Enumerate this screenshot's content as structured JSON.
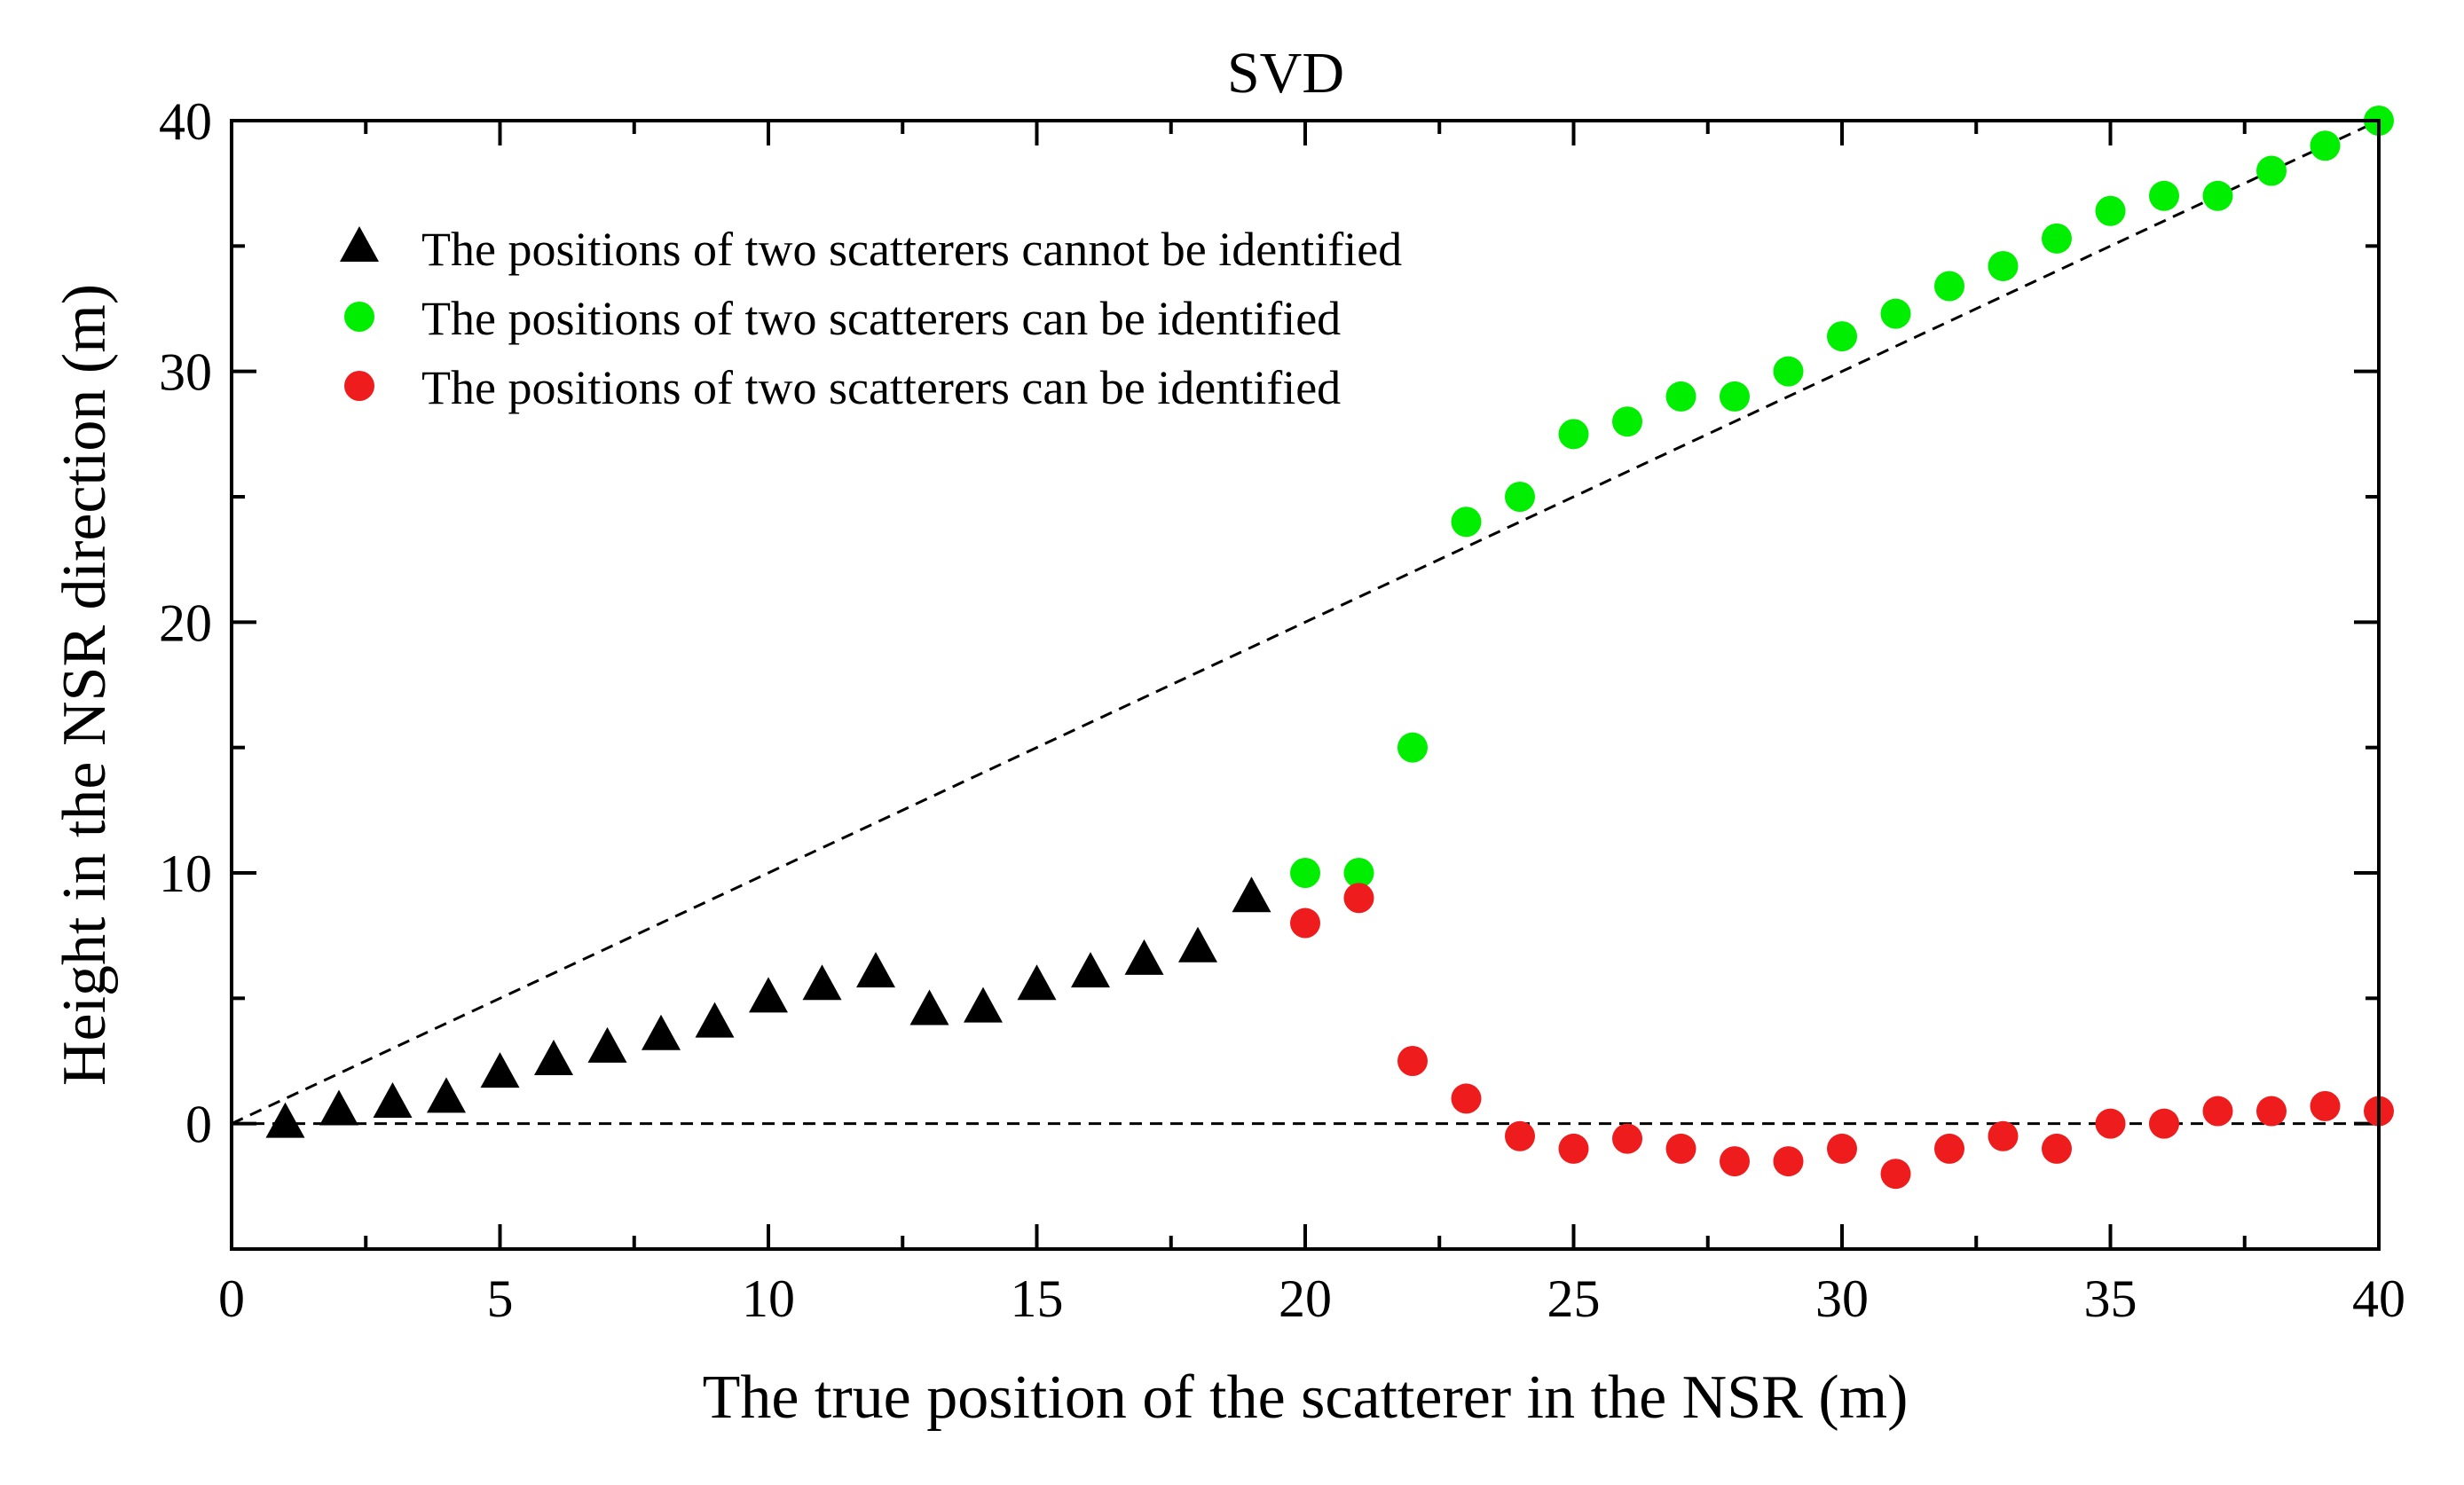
{
  "chart_data": {
    "type": "scatter",
    "title": "SVD",
    "xlabel": "The true position of the scatterer in the NSR (m)",
    "ylabel": "Height in the NSR direction (m)",
    "xlim": [
      0,
      40
    ],
    "ylim": [
      -5,
      40
    ],
    "x_ticks": [
      0,
      5,
      10,
      15,
      20,
      25,
      30,
      35,
      40
    ],
    "y_ticks": [
      0,
      10,
      20,
      30,
      40
    ],
    "x_minor_step": 2.5,
    "y_minor_step": 5,
    "grid": false,
    "legend_position": "top-left",
    "reference_lines": [
      {
        "name": "true-position-line",
        "style": "dashed",
        "color": "#000000",
        "points": [
          [
            0,
            0
          ],
          [
            40,
            40
          ]
        ]
      },
      {
        "name": "zero-height-line",
        "style": "dashed",
        "color": "#000000",
        "points": [
          [
            0,
            0
          ],
          [
            40,
            0
          ]
        ]
      }
    ],
    "series": [
      {
        "name": "The positions of two scatterers cannot be identified",
        "marker": "triangle",
        "color": "#000000",
        "points": [
          [
            1,
            0
          ],
          [
            2,
            0.5
          ],
          [
            3,
            0.8
          ],
          [
            4,
            1
          ],
          [
            5,
            2
          ],
          [
            6,
            2.5
          ],
          [
            7,
            3
          ],
          [
            8,
            3.5
          ],
          [
            9,
            4
          ],
          [
            10,
            5
          ],
          [
            11,
            5.5
          ],
          [
            12,
            6
          ],
          [
            13,
            4.5
          ],
          [
            14,
            4.6
          ],
          [
            15,
            5.5
          ],
          [
            16,
            6
          ],
          [
            17,
            6.5
          ],
          [
            18,
            7
          ],
          [
            19,
            9
          ]
        ]
      },
      {
        "name": "The positions of two scatterers can be identified",
        "marker": "circle",
        "color": "#00ee00",
        "points": [
          [
            20,
            10
          ],
          [
            21,
            10
          ],
          [
            22,
            15
          ],
          [
            23,
            24
          ],
          [
            24,
            25
          ],
          [
            25,
            27.5
          ],
          [
            26,
            28
          ],
          [
            27,
            29
          ],
          [
            28,
            29
          ],
          [
            29,
            30
          ],
          [
            30,
            31.4
          ],
          [
            31,
            32.3
          ],
          [
            32,
            33.4
          ],
          [
            33,
            34.2
          ],
          [
            34,
            35.3
          ],
          [
            35,
            36.4
          ],
          [
            36,
            37
          ],
          [
            37,
            37
          ],
          [
            38,
            38
          ],
          [
            39,
            39
          ],
          [
            40,
            40
          ]
        ]
      },
      {
        "name": "The positions of two scatterers can be identified",
        "marker": "circle",
        "color": "#ee1c1c",
        "points": [
          [
            20,
            8
          ],
          [
            21,
            9
          ],
          [
            22,
            2.5
          ],
          [
            23,
            1
          ],
          [
            24,
            -0.5
          ],
          [
            25,
            -1
          ],
          [
            26,
            -0.6
          ],
          [
            27,
            -1
          ],
          [
            28,
            -1.5
          ],
          [
            29,
            -1.5
          ],
          [
            30,
            -1
          ],
          [
            31,
            -2
          ],
          [
            32,
            -1
          ],
          [
            33,
            -0.5
          ],
          [
            34,
            -1
          ],
          [
            35,
            0
          ],
          [
            36,
            0
          ],
          [
            37,
            0.5
          ],
          [
            38,
            0.5
          ],
          [
            39,
            0.7
          ],
          [
            40,
            0.5
          ]
        ]
      }
    ]
  }
}
